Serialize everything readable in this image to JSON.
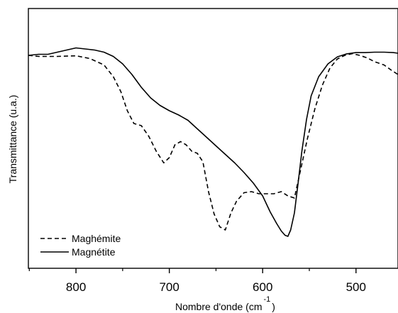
{
  "chart_data": {
    "type": "line",
    "title": "",
    "xlabel_main": "Nombre d'onde (cm",
    "xlabel_sup": "-1",
    "xlabel_end": ")",
    "ylabel": "Transmittance (u.a.)",
    "xlim": [
      851,
      455
    ],
    "x_ticks": [
      800,
      700,
      600,
      500
    ],
    "ylim": [
      0,
      1
    ],
    "y_ticks_labeled": false,
    "grid": false,
    "legend_position": "bottom-left",
    "series": [
      {
        "name": "Maghémite",
        "style": "dashed",
        "color": "#000000",
        "x": [
          851,
          840,
          820,
          800,
          785,
          770,
          760,
          752,
          745,
          738,
          730,
          722,
          714,
          706,
          700,
          694,
          688,
          682,
          676,
          670,
          664,
          658,
          652,
          646,
          640,
          634,
          628,
          620,
          612,
          604,
          596,
          588,
          580,
          573,
          566,
          560,
          552,
          544,
          536,
          528,
          520,
          512,
          504,
          496,
          488,
          480,
          470,
          462,
          455
        ],
        "y": [
          0.89,
          0.885,
          0.885,
          0.888,
          0.875,
          0.845,
          0.79,
          0.72,
          0.63,
          0.57,
          0.56,
          0.51,
          0.44,
          0.385,
          0.41,
          0.47,
          0.485,
          0.47,
          0.44,
          0.43,
          0.39,
          0.25,
          0.145,
          0.085,
          0.07,
          0.15,
          0.205,
          0.245,
          0.25,
          0.24,
          0.24,
          0.24,
          0.25,
          0.23,
          0.22,
          0.34,
          0.5,
          0.64,
          0.75,
          0.83,
          0.873,
          0.89,
          0.898,
          0.89,
          0.878,
          0.86,
          0.845,
          0.82,
          0.8
        ]
      },
      {
        "name": "Magnétite",
        "style": "solid",
        "color": "#000000",
        "x": [
          851,
          840,
          830,
          820,
          810,
          800,
          790,
          780,
          770,
          760,
          750,
          740,
          730,
          720,
          710,
          700,
          690,
          680,
          670,
          660,
          650,
          640,
          630,
          620,
          610,
          600,
          592,
          585,
          580,
          576,
          573,
          570,
          566,
          562,
          558,
          553,
          548,
          540,
          530,
          520,
          510,
          500,
          490,
          480,
          470,
          460,
          455
        ],
        "y": [
          0.89,
          0.895,
          0.895,
          0.905,
          0.915,
          0.925,
          0.92,
          0.915,
          0.905,
          0.885,
          0.85,
          0.8,
          0.74,
          0.69,
          0.655,
          0.63,
          0.61,
          0.585,
          0.545,
          0.505,
          0.465,
          0.425,
          0.385,
          0.34,
          0.29,
          0.23,
          0.155,
          0.1,
          0.065,
          0.045,
          0.04,
          0.07,
          0.15,
          0.29,
          0.44,
          0.59,
          0.7,
          0.79,
          0.85,
          0.883,
          0.897,
          0.903,
          0.903,
          0.905,
          0.905,
          0.903,
          0.9
        ]
      }
    ]
  }
}
